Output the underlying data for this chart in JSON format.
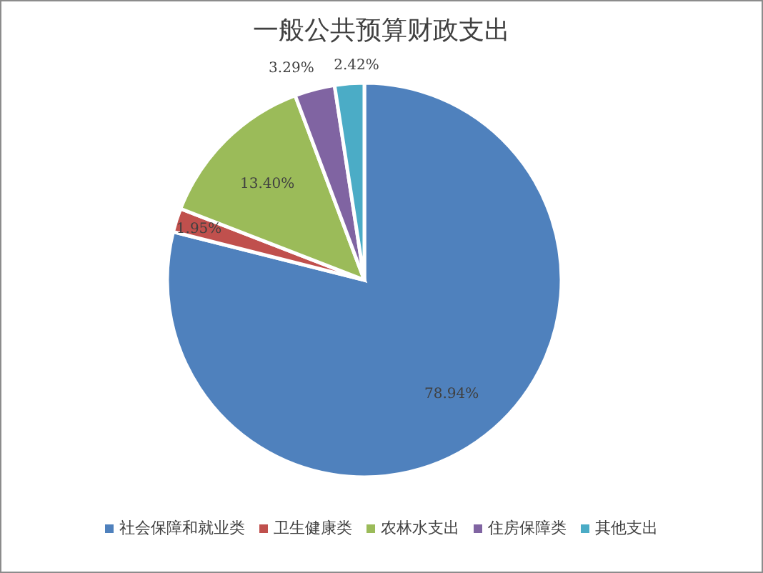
{
  "chart_data": {
    "type": "pie",
    "title": "一般公共预算财政支出",
    "categories": [
      "社会保障和就业类",
      "卫生健康类",
      "农林水支出",
      "住房保障类",
      "其他支出"
    ],
    "values": [
      78.94,
      1.95,
      13.4,
      3.29,
      2.42
    ],
    "colors": [
      "#4f81bd",
      "#c0504d",
      "#9bbb59",
      "#8064a2",
      "#4bacc6"
    ],
    "value_labels": [
      "78.94%",
      "1.95%",
      "13.40%",
      "3.29%",
      "2.42%"
    ],
    "legend": "bottom"
  }
}
